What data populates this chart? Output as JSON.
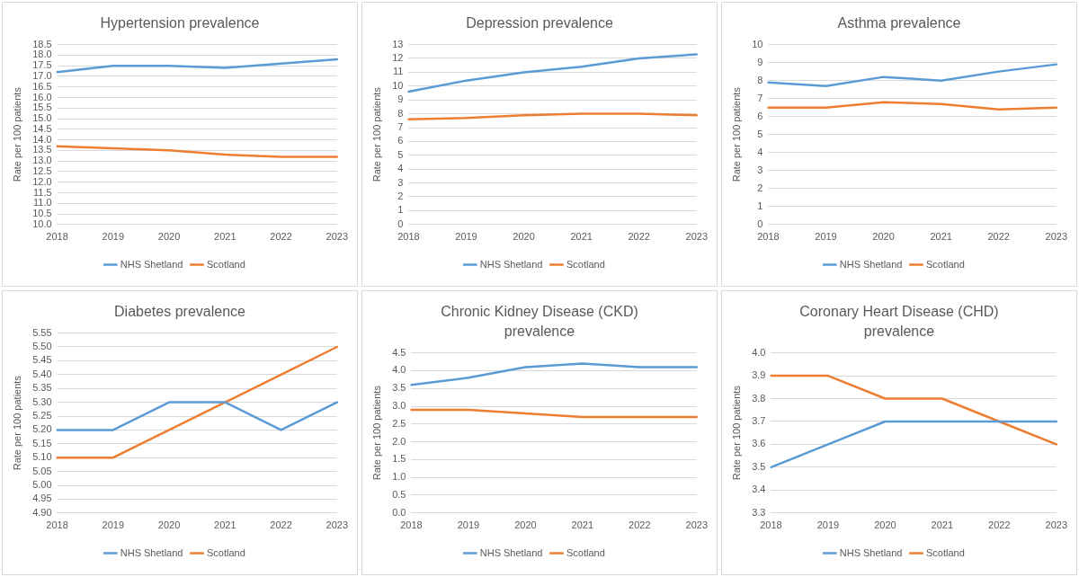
{
  "chart_data": [
    {
      "type": "line",
      "title": "Hypertension prevalence",
      "ylabel": "Rate per 100 patients",
      "categories": [
        "2018",
        "2019",
        "2020",
        "2021",
        "2022",
        "2023"
      ],
      "grid": "y",
      "legend": "bottom",
      "marker": "none",
      "line_style": "solid",
      "series": [
        {
          "name": "NHS Shetland",
          "color": "#5b9bd5",
          "values": [
            17.2,
            17.5,
            17.5,
            17.4,
            17.6,
            17.8
          ]
        },
        {
          "name": "Scotland",
          "color": "#ed7d31",
          "values": [
            13.7,
            13.6,
            13.5,
            13.3,
            13.2,
            13.2
          ]
        }
      ],
      "ylim": [
        10,
        18.5
      ],
      "yticks": [
        {
          "value": 10,
          "label": "10.0"
        },
        10.5,
        {
          "value": 11,
          "label": "11.0"
        },
        11.5,
        {
          "value": 12,
          "label": "12.0"
        },
        12.5,
        {
          "value": 13,
          "label": "13.0"
        },
        13.5,
        {
          "value": 14,
          "label": "14.0"
        },
        14.5,
        {
          "value": 15,
          "label": "15.0"
        },
        15.5,
        {
          "value": 16,
          "label": "16.0"
        },
        16.5,
        {
          "value": 17,
          "label": "17.0"
        },
        17.5,
        {
          "value": 18,
          "label": "18.0"
        },
        18.5
      ]
    },
    {
      "type": "line",
      "title": "Depression prevalence",
      "ylabel": "Rate per 100 patients",
      "categories": [
        "2018",
        "2019",
        "2020",
        "2021",
        "2022",
        "2023"
      ],
      "grid": "y",
      "legend": "bottom",
      "marker": "none",
      "line_style": "solid",
      "series": [
        {
          "name": "NHS Shetland",
          "color": "#5b9bd5",
          "values": [
            9.6,
            10.4,
            11.0,
            11.4,
            12.0,
            12.3
          ]
        },
        {
          "name": "Scotland",
          "color": "#ed7d31",
          "values": [
            7.6,
            7.7,
            7.9,
            8.0,
            8.0,
            7.9
          ]
        }
      ],
      "ylim": [
        0,
        13
      ],
      "yticks": [
        0,
        1,
        2,
        3,
        4,
        5,
        6,
        7,
        8,
        9,
        10,
        11,
        12,
        13
      ]
    },
    {
      "type": "line",
      "title": "Asthma prevalence",
      "ylabel": "Rate per 100 patients",
      "categories": [
        "2018",
        "2019",
        "2020",
        "2021",
        "2022",
        "2023"
      ],
      "grid": "y",
      "legend": "bottom",
      "marker": "none",
      "line_style": "solid",
      "series": [
        {
          "name": "NHS Shetland",
          "color": "#5b9bd5",
          "values": [
            7.9,
            7.7,
            8.2,
            8.0,
            8.5,
            8.9
          ]
        },
        {
          "name": "Scotland",
          "color": "#ed7d31",
          "values": [
            6.5,
            6.5,
            6.8,
            6.7,
            6.4,
            6.5
          ]
        }
      ],
      "ylim": [
        0,
        10
      ],
      "yticks": [
        0,
        1,
        2,
        3,
        4,
        5,
        6,
        7,
        8,
        9,
        10
      ]
    },
    {
      "type": "line",
      "title": "Diabetes prevalence",
      "ylabel": "Rate per 100 patients",
      "categories": [
        "2018",
        "2019",
        "2020",
        "2021",
        "2022",
        "2023"
      ],
      "grid": "y",
      "legend": "bottom",
      "marker": "none",
      "line_style": "solid",
      "series": [
        {
          "name": "NHS Shetland",
          "color": "#5b9bd5",
          "values": [
            5.2,
            5.2,
            5.3,
            5.3,
            5.2,
            5.3
          ]
        },
        {
          "name": "Scotland",
          "color": "#ed7d31",
          "values": [
            5.1,
            5.1,
            5.2,
            5.3,
            5.4,
            5.5
          ]
        }
      ],
      "ylim": [
        4.9,
        5.55
      ],
      "yticks": [
        {
          "value": 4.9,
          "label": "4.90"
        },
        4.95,
        {
          "value": 5,
          "label": "5.00"
        },
        5.05,
        {
          "value": 5.1,
          "label": "5.10"
        },
        5.15,
        {
          "value": 5.2,
          "label": "5.20"
        },
        5.25,
        {
          "value": 5.3,
          "label": "5.30"
        },
        5.35,
        {
          "value": 5.4,
          "label": "5.40"
        },
        5.45,
        {
          "value": 5.5,
          "label": "5.50"
        },
        5.55
      ]
    },
    {
      "type": "line",
      "title": "Chronic Kidney Disease (CKD) prevalence",
      "ylabel": "Rate per 100 patients",
      "categories": [
        "2018",
        "2019",
        "2020",
        "2021",
        "2022",
        "2023"
      ],
      "grid": "y",
      "legend": "bottom",
      "marker": "none",
      "line_style": "solid",
      "series": [
        {
          "name": "NHS Shetland",
          "color": "#5b9bd5",
          "values": [
            3.6,
            3.8,
            4.1,
            4.2,
            4.1,
            4.1
          ]
        },
        {
          "name": "Scotland",
          "color": "#ed7d31",
          "values": [
            2.9,
            2.9,
            2.8,
            2.7,
            2.7,
            2.7
          ]
        }
      ],
      "ylim": [
        0,
        4.5
      ],
      "yticks": [
        {
          "value": 0,
          "label": "0.0"
        },
        0.5,
        {
          "value": 1,
          "label": "1.0"
        },
        1.5,
        {
          "value": 2,
          "label": "2.0"
        },
        2.5,
        {
          "value": 3,
          "label": "3.0"
        },
        3.5,
        {
          "value": 4,
          "label": "4.0"
        },
        4.5
      ]
    },
    {
      "type": "line",
      "title": "Coronary Heart Disease (CHD) prevalence",
      "ylabel": "Rate per 100 patients",
      "categories": [
        "2018",
        "2019",
        "2020",
        "2021",
        "2022",
        "2023"
      ],
      "grid": "y",
      "legend": "bottom",
      "marker": "none",
      "line_style": "solid",
      "series": [
        {
          "name": "NHS Shetland",
          "color": "#5b9bd5",
          "values": [
            3.5,
            3.6,
            3.7,
            3.7,
            3.7,
            3.7
          ]
        },
        {
          "name": "Scotland",
          "color": "#ed7d31",
          "values": [
            3.9,
            3.9,
            3.8,
            3.8,
            3.7,
            3.6
          ]
        }
      ],
      "ylim": [
        3.3,
        4.0
      ],
      "yticks": [
        3.3,
        3.4,
        3.5,
        3.6,
        3.7,
        3.8,
        3.9,
        {
          "value": 4,
          "label": "4.0"
        }
      ]
    }
  ]
}
